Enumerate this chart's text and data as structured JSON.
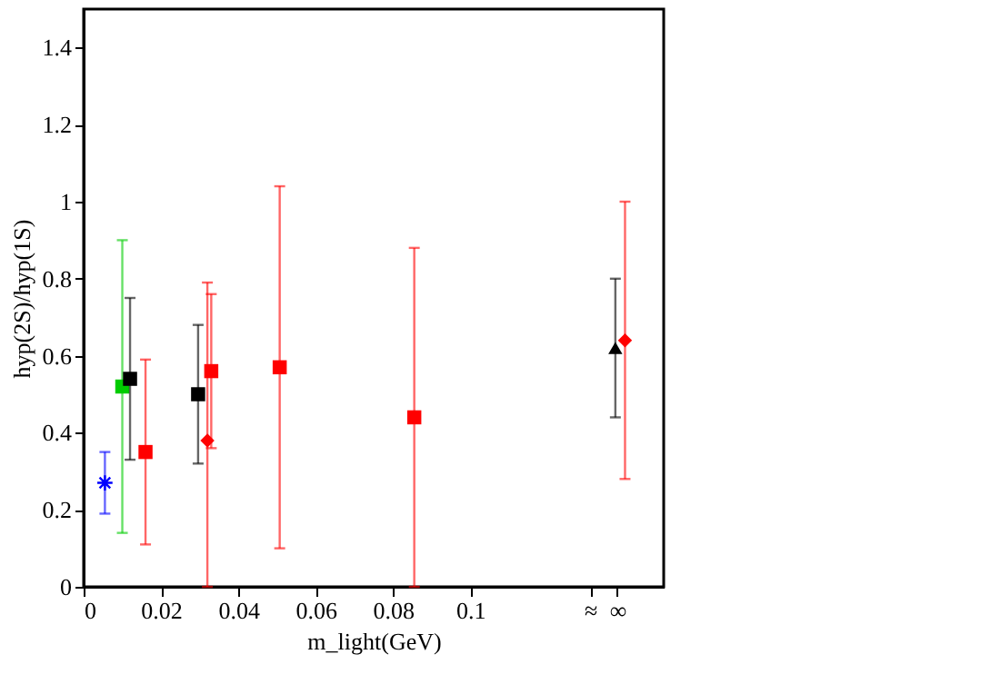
{
  "chart_data": {
    "type": "scatter",
    "xlabel": "m_light(GeV)",
    "ylabel": "hyp(2S)/hyp(1S)",
    "xlim": [
      0,
      0.15
    ],
    "ylim": [
      0,
      1.5
    ],
    "xticks": [
      0,
      0.02,
      0.04,
      0.06,
      0.08,
      0.1,
      {
        "value": 0.131,
        "label": "≈"
      },
      {
        "value": 0.138,
        "label": "∞"
      }
    ],
    "yticks": [
      0,
      0.2,
      0.4,
      0.6,
      0.8,
      1,
      1.2,
      1.4
    ],
    "grid": false,
    "series": [
      {
        "color": "#0000ff",
        "marker": "cross",
        "x": [
          0.0055
        ],
        "values": [
          0.27
        ],
        "errors": [
          [
            0.19,
            0.35
          ]
        ]
      },
      {
        "color": "#00cc00",
        "marker": "square",
        "x": [
          0.01
        ],
        "values": [
          0.52
        ],
        "errors": [
          [
            0.14,
            0.9
          ]
        ]
      },
      {
        "color": "#000000",
        "marker": "square",
        "x": [
          0.012,
          0.0296
        ],
        "values": [
          0.54,
          0.5
        ],
        "errors": [
          [
            0.33,
            0.75
          ],
          [
            0.32,
            0.68
          ]
        ]
      },
      {
        "color": "#ff0000",
        "marker": "square",
        "x": [
          0.016,
          0.033,
          0.0507,
          0.0855
        ],
        "values": [
          0.35,
          0.56,
          0.57,
          0.44
        ],
        "errors": [
          [
            0.11,
            0.59
          ],
          [
            0.36,
            0.76
          ],
          [
            0.1,
            1.04
          ],
          [
            0,
            0.88
          ]
        ]
      },
      {
        "color": "#ff0000",
        "marker": "diamond",
        "x": [
          0.032,
          0.14
        ],
        "values": [
          0.38,
          0.64
        ],
        "errors": [
          [
            0,
            0.79
          ],
          [
            0.28,
            1.0
          ]
        ]
      },
      {
        "color": "#000000",
        "marker": "triangle",
        "x": [
          0.1375
        ],
        "values": [
          0.62
        ],
        "errors": [
          [
            0.44,
            0.8
          ]
        ]
      }
    ]
  }
}
